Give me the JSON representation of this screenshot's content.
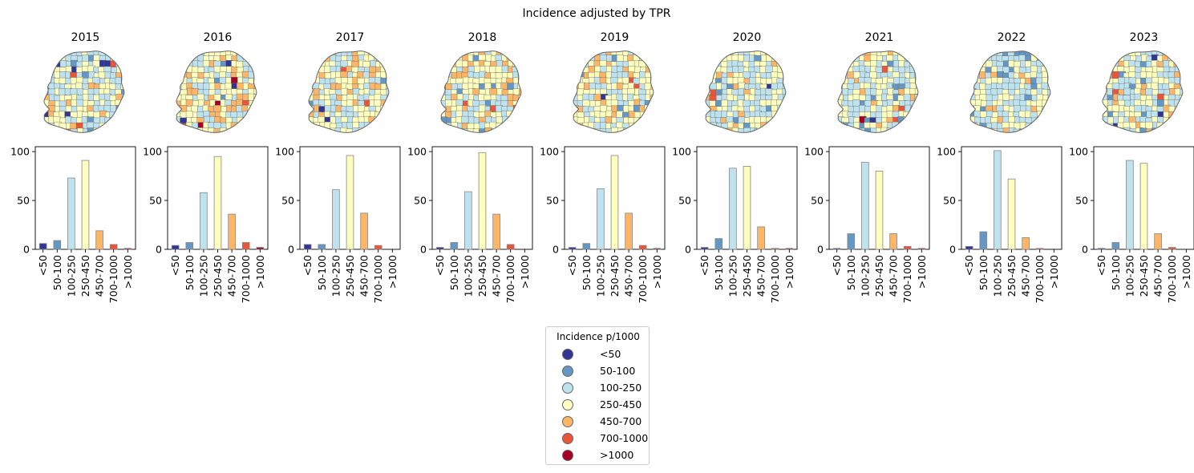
{
  "figure": {
    "suptitle": "Incidence adjusted by TPR"
  },
  "legend": {
    "title": "Incidence p/1000",
    "placement": "bottom-center",
    "items": [
      {
        "label": "<50",
        "color": "#313695"
      },
      {
        "label": "50-100",
        "color": "#6497c4"
      },
      {
        "label": "100-250",
        "color": "#bfe3ee"
      },
      {
        "label": "250-450",
        "color": "#fefebe"
      },
      {
        "label": "450-700",
        "color": "#fdb567"
      },
      {
        "label": "700-1000",
        "color": "#e8553a"
      },
      {
        "label": ">1000",
        "color": "#a50026"
      }
    ]
  },
  "chart_data": [
    {
      "type": "bar",
      "title": "2015",
      "categories": [
        "<50",
        "50-100",
        "100-250",
        "250-450",
        "450-700",
        "700-1000",
        ">1000"
      ],
      "values": [
        6,
        9,
        73,
        91,
        19,
        5,
        1
      ],
      "ylim": [
        0,
        105
      ],
      "yticks": [
        0,
        50,
        100
      ]
    },
    {
      "type": "bar",
      "title": "2016",
      "categories": [
        "<50",
        "50-100",
        "100-250",
        "250-450",
        "450-700",
        "700-1000",
        ">1000"
      ],
      "values": [
        4,
        7,
        58,
        95,
        36,
        7,
        2
      ],
      "ylim": [
        0,
        105
      ],
      "yticks": [
        0,
        50,
        100
      ]
    },
    {
      "type": "bar",
      "title": "2017",
      "categories": [
        "<50",
        "50-100",
        "100-250",
        "250-450",
        "450-700",
        "700-1000",
        ">1000"
      ],
      "values": [
        5,
        5,
        61,
        96,
        37,
        4,
        0
      ],
      "ylim": [
        0,
        105
      ],
      "yticks": [
        0,
        50,
        100
      ]
    },
    {
      "type": "bar",
      "title": "2018",
      "categories": [
        "<50",
        "50-100",
        "100-250",
        "250-450",
        "450-700",
        "700-1000",
        ">1000"
      ],
      "values": [
        2,
        7,
        59,
        99,
        36,
        5,
        0
      ],
      "ylim": [
        0,
        105
      ],
      "yticks": [
        0,
        50,
        100
      ]
    },
    {
      "type": "bar",
      "title": "2019",
      "categories": [
        "<50",
        "50-100",
        "100-250",
        "250-450",
        "450-700",
        "700-1000",
        ">1000"
      ],
      "values": [
        2,
        6,
        62,
        96,
        37,
        4,
        1
      ],
      "ylim": [
        0,
        105
      ],
      "yticks": [
        0,
        50,
        100
      ]
    },
    {
      "type": "bar",
      "title": "2020",
      "categories": [
        "<50",
        "50-100",
        "100-250",
        "250-450",
        "450-700",
        "700-1000",
        ">1000"
      ],
      "values": [
        2,
        11,
        83,
        85,
        23,
        1,
        1
      ],
      "ylim": [
        0,
        105
      ],
      "yticks": [
        0,
        50,
        100
      ]
    },
    {
      "type": "bar",
      "title": "2021",
      "categories": [
        "<50",
        "50-100",
        "100-250",
        "250-450",
        "450-700",
        "700-1000",
        ">1000"
      ],
      "values": [
        1,
        16,
        89,
        80,
        16,
        3,
        1
      ],
      "ylim": [
        0,
        105
      ],
      "yticks": [
        0,
        50,
        100
      ]
    },
    {
      "type": "bar",
      "title": "2022",
      "categories": [
        "<50",
        "50-100",
        "100-250",
        "250-450",
        "450-700",
        "700-1000",
        ">1000"
      ],
      "values": [
        3,
        18,
        101,
        72,
        12,
        1,
        0
      ],
      "ylim": [
        0,
        105
      ],
      "yticks": [
        0,
        50,
        100
      ]
    },
    {
      "type": "bar",
      "title": "2023",
      "categories": [
        "<50",
        "50-100",
        "100-250",
        "250-450",
        "450-700",
        "700-1000",
        ">1000"
      ],
      "values": [
        1,
        7,
        91,
        88,
        16,
        2,
        0
      ],
      "ylim": [
        0,
        105
      ],
      "yticks": [
        0,
        50,
        100
      ]
    }
  ]
}
